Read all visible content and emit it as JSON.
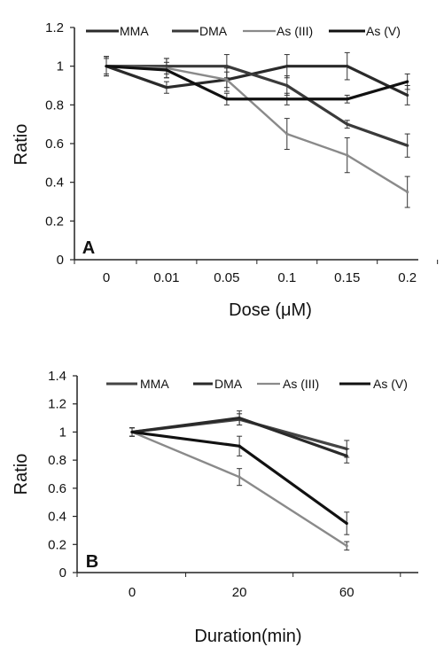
{
  "chart_data": [
    {
      "type": "line",
      "panel_label": "A",
      "categories": [
        "0",
        "0.01",
        "0.05",
        "0.1",
        "0.15",
        "0.2"
      ],
      "xlabel": "Dose (μM)",
      "ylabel": "Ratio",
      "ylim": [
        0,
        1.2
      ],
      "yticks": [
        "0",
        "0.2",
        "0.4",
        "0.6",
        "0.8",
        "1",
        "1.2"
      ],
      "legend_position": "top",
      "grid": false,
      "series": [
        {
          "name": "MMA",
          "color": "#2a2a2a",
          "values": [
            1.0,
            0.89,
            0.93,
            1.0,
            1.0,
            0.85
          ],
          "errors": [
            0.05,
            0.03,
            0.04,
            0.06,
            0.07,
            0.05
          ]
        },
        {
          "name": "DMA",
          "color": "#3a3a3a",
          "values": [
            1.0,
            1.0,
            1.0,
            0.9,
            0.7,
            0.59
          ],
          "errors": [
            0.05,
            0.04,
            0.06,
            0.05,
            0.02,
            0.06
          ]
        },
        {
          "name": "As (III)",
          "color": "#8a8a8a",
          "values": [
            1.0,
            0.99,
            0.93,
            0.65,
            0.54,
            0.35
          ],
          "errors": [
            0.05,
            0.05,
            0.06,
            0.08,
            0.09,
            0.08
          ]
        },
        {
          "name": "As (V)",
          "color": "#111111",
          "values": [
            1.0,
            0.98,
            0.83,
            0.83,
            0.83,
            0.92
          ],
          "errors": [
            0.04,
            0.04,
            0.03,
            0.03,
            0.02,
            0.04
          ]
        }
      ]
    },
    {
      "type": "line",
      "panel_label": "B",
      "categories": [
        "0",
        "20",
        "60"
      ],
      "xlabel": "Duration(min)",
      "ylabel": "Ratio",
      "ylim": [
        0,
        1.4
      ],
      "yticks": [
        "0",
        "0.2",
        "0.4",
        "0.6",
        "0.8",
        "1",
        "1.2",
        "1.4"
      ],
      "legend_position": "top",
      "grid": false,
      "series": [
        {
          "name": "MMA",
          "color": "#444444",
          "values": [
            1.0,
            1.09,
            0.88
          ],
          "errors": [
            0.03,
            0.04,
            0.06
          ]
        },
        {
          "name": "DMA",
          "color": "#2a2a2a",
          "values": [
            1.0,
            1.1,
            0.83
          ],
          "errors": [
            0.03,
            0.05,
            0.05
          ]
        },
        {
          "name": "As (III)",
          "color": "#8a8a8a",
          "values": [
            1.0,
            0.68,
            0.19
          ],
          "errors": [
            0.03,
            0.06,
            0.03
          ]
        },
        {
          "name": "As (V)",
          "color": "#111111",
          "values": [
            1.0,
            0.9,
            0.35
          ],
          "errors": [
            0.03,
            0.07,
            0.08
          ]
        }
      ]
    }
  ]
}
